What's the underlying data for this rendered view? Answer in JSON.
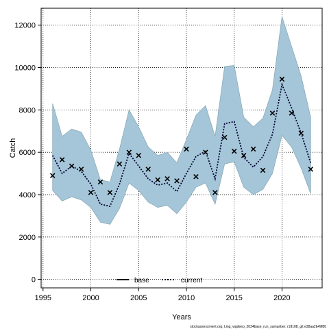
{
  "chart_data": {
    "type": "line",
    "xlabel": "Years",
    "ylabel": "Catch",
    "xlim": [
      1994.8,
      2024.2
    ],
    "ylim": [
      -400,
      12800
    ],
    "xticks": [
      1995,
      2000,
      2005,
      2010,
      2015,
      2020
    ],
    "yticks": [
      0,
      2000,
      4000,
      6000,
      8000,
      10000,
      12000
    ],
    "grid": true,
    "legend_position": "bottom-center",
    "years": [
      1996,
      1997,
      1998,
      1999,
      2000,
      2001,
      2002,
      2003,
      2004,
      2005,
      2006,
      2007,
      2008,
      2009,
      2010,
      2011,
      2012,
      2013,
      2014,
      2015,
      2016,
      2017,
      2018,
      2019,
      2020,
      2021,
      2022,
      2023
    ],
    "series": [
      {
        "name": "base",
        "color": "#000000",
        "style": "solid",
        "values": []
      },
      {
        "name": "current",
        "color": "#000033",
        "style": "dotted",
        "values": [
          5850,
          5000,
          5350,
          5100,
          4500,
          3550,
          3450,
          4500,
          5950,
          5350,
          4750,
          4450,
          4550,
          4150,
          5000,
          5800,
          6050,
          4750,
          7350,
          7450,
          5750,
          5300,
          5800,
          6850,
          9200,
          8100,
          6900,
          5500
        ],
        "ci_upper": [
          8300,
          6750,
          7100,
          6950,
          6100,
          4700,
          4600,
          6150,
          8000,
          7200,
          6250,
          5850,
          6000,
          5500,
          6600,
          7750,
          8200,
          6750,
          10050,
          10100,
          7650,
          7200,
          7600,
          8950,
          12400,
          11000,
          9600,
          7650
        ],
        "ci_lower": [
          4200,
          3700,
          3900,
          3750,
          3400,
          2700,
          2600,
          3350,
          4550,
          4200,
          3650,
          3400,
          3500,
          3100,
          3650,
          4350,
          4550,
          3550,
          5450,
          5550,
          4350,
          4000,
          4250,
          5000,
          6800,
          6250,
          5250,
          4050
        ]
      }
    ],
    "observed": {
      "marker": "x",
      "values": [
        4900,
        5650,
        5350,
        5200,
        4100,
        4600,
        4100,
        5450,
        6000,
        5850,
        5200,
        4700,
        4750,
        4650,
        6150,
        4850,
        6000,
        4100,
        6700,
        6050,
        5850,
        6150,
        5150,
        7850,
        9450,
        7850,
        6900,
        5200
      ]
    },
    "band_color": "#a5c6d8",
    "band_edge_color": "#8aaab8"
  },
  "legend": {
    "base": "base",
    "current": "current"
  },
  "footer": "stockassessment.org, Ling_wgdeep_2024base_run_samanber, r18108_git e38aa2b49f80"
}
